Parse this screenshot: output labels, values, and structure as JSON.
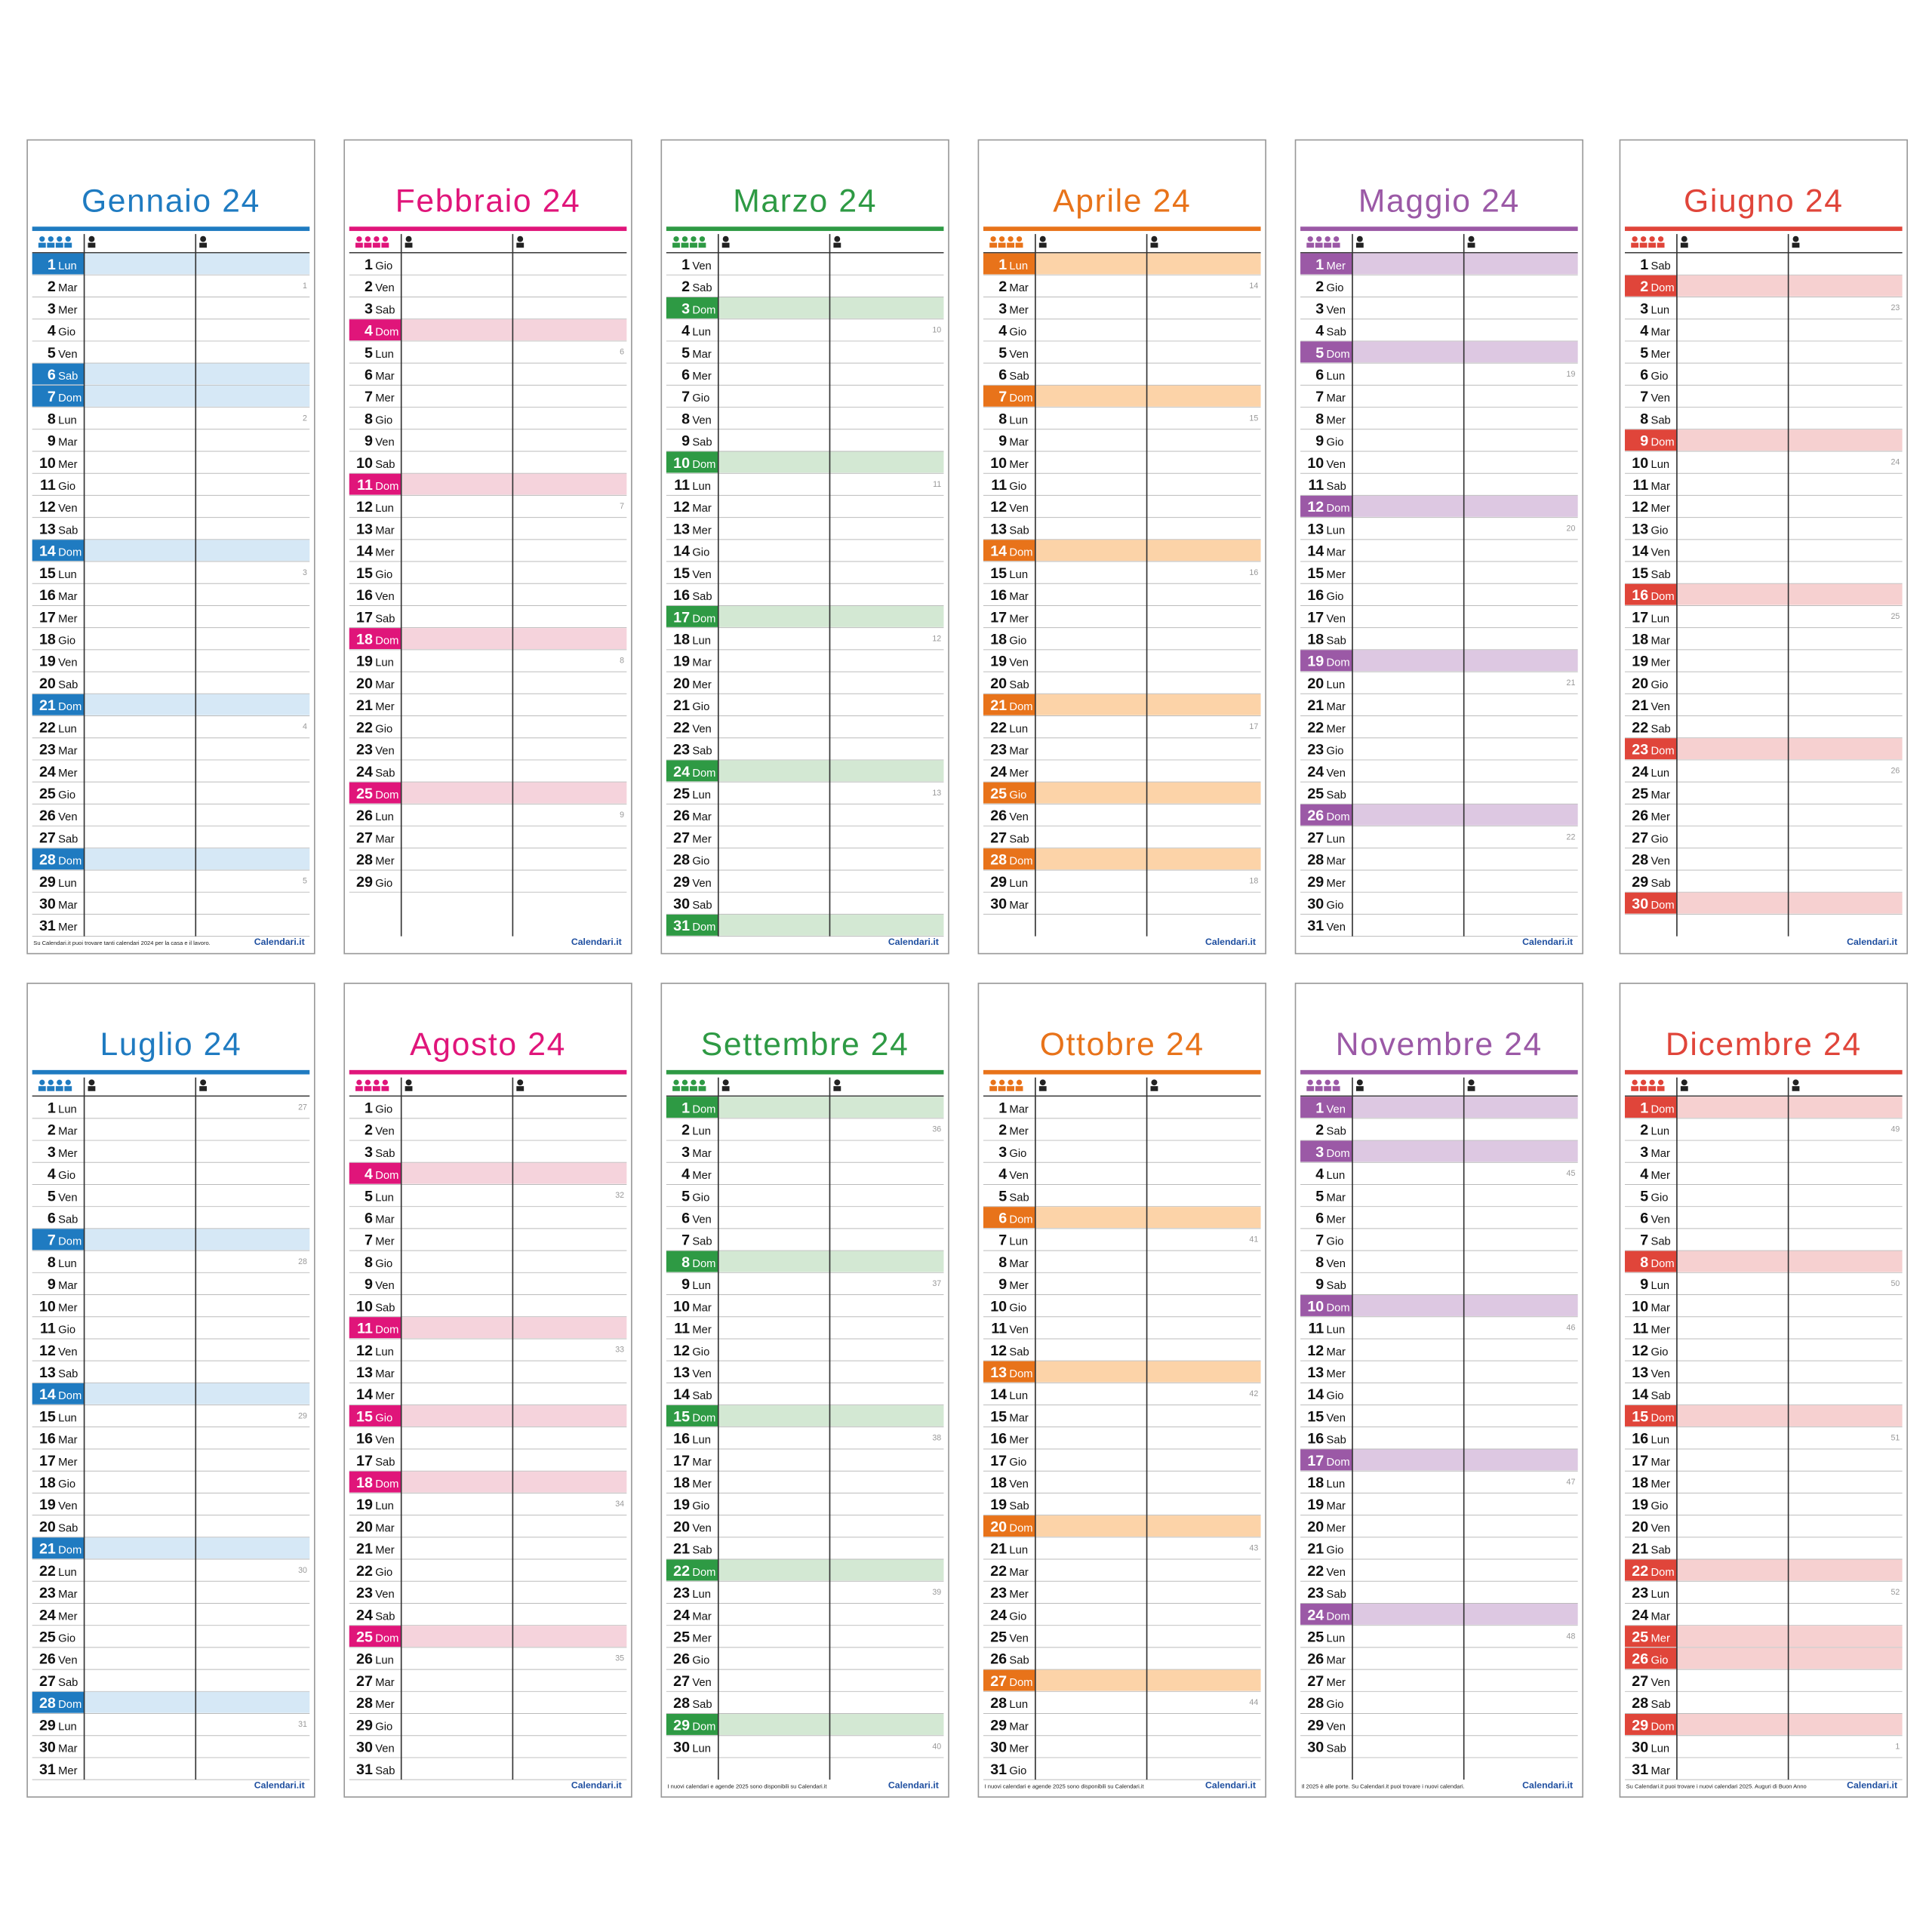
{
  "logo": "Calendari.it",
  "months": [
    {
      "title": "Gennaio 24",
      "color": "#1f7bc1",
      "light": "#d6e8f6",
      "numbers": [
        1,
        2,
        3,
        4,
        5,
        6,
        7,
        8,
        9,
        10,
        11,
        12,
        13,
        14,
        15,
        16,
        17,
        18,
        19,
        20,
        21,
        22,
        23,
        24,
        25,
        26,
        27,
        28,
        29,
        30,
        31
      ],
      "weekdays": [
        "Lun",
        "Mar",
        "Mer",
        "Gio",
        "Ven",
        "Sab",
        "Dom",
        "Lun",
        "Mar",
        "Mer",
        "Gio",
        "Ven",
        "Sab",
        "Dom",
        "Lun",
        "Mar",
        "Mer",
        "Gio",
        "Ven",
        "Sab",
        "Dom",
        "Lun",
        "Mar",
        "Mer",
        "Gio",
        "Ven",
        "Sab",
        "Dom",
        "Lun",
        "Mar",
        "Mer"
      ],
      "holidays": [
        1,
        6,
        7,
        14,
        21,
        28
      ],
      "weeks": [
        {
          "day": 2,
          "label": "1"
        },
        {
          "day": 8,
          "label": "2"
        },
        {
          "day": 15,
          "label": "3"
        },
        {
          "day": 22,
          "label": "4"
        },
        {
          "day": 29,
          "label": "5"
        }
      ],
      "footer": "Su Calendari.it puoi trovare tanti calendari 2024 per la casa e il lavoro."
    },
    {
      "title": "Febbraio 24",
      "color": "#e0157a",
      "light": "#f5d3dc",
      "numbers": [
        1,
        2,
        3,
        4,
        5,
        6,
        7,
        8,
        9,
        10,
        11,
        12,
        13,
        14,
        15,
        16,
        17,
        18,
        19,
        20,
        21,
        22,
        23,
        24,
        25,
        26,
        27,
        28,
        29
      ],
      "weekdays": [
        "Gio",
        "Ven",
        "Sab",
        "Dom",
        "Lun",
        "Mar",
        "Mer",
        "Gio",
        "Ven",
        "Sab",
        "Dom",
        "Lun",
        "Mar",
        "Mer",
        "Gio",
        "Ven",
        "Sab",
        "Dom",
        "Lun",
        "Mar",
        "Mer",
        "Gio",
        "Ven",
        "Sab",
        "Dom",
        "Lun",
        "Mar",
        "Mer",
        "Gio"
      ],
      "holidays": [
        4,
        11,
        18,
        25
      ],
      "weeks": [
        {
          "day": 5,
          "label": "6"
        },
        {
          "day": 12,
          "label": "7"
        },
        {
          "day": 19,
          "label": "8"
        },
        {
          "day": 26,
          "label": "9"
        }
      ]
    },
    {
      "title": "Marzo 24",
      "color": "#2e9a44",
      "light": "#d3e8d3",
      "numbers": [
        1,
        2,
        3,
        4,
        5,
        6,
        7,
        8,
        9,
        10,
        11,
        12,
        13,
        14,
        15,
        16,
        17,
        18,
        19,
        20,
        21,
        22,
        23,
        24,
        25,
        26,
        27,
        28,
        29,
        30,
        31
      ],
      "weekdays": [
        "Ven",
        "Sab",
        "Dom",
        "Lun",
        "Mar",
        "Mer",
        "Gio",
        "Ven",
        "Sab",
        "Dom",
        "Lun",
        "Mar",
        "Mer",
        "Gio",
        "Ven",
        "Sab",
        "Dom",
        "Lun",
        "Mar",
        "Mer",
        "Gio",
        "Ven",
        "Sab",
        "Dom",
        "Lun",
        "Mar",
        "Mer",
        "Gio",
        "Ven",
        "Sab",
        "Dom"
      ],
      "holidays": [
        3,
        10,
        17,
        24,
        31
      ],
      "weeks": [
        {
          "day": 4,
          "label": "10"
        },
        {
          "day": 11,
          "label": "11"
        },
        {
          "day": 18,
          "label": "12"
        },
        {
          "day": 25,
          "label": "13"
        }
      ]
    },
    {
      "title": "Aprile 24",
      "color": "#e8731a",
      "light": "#fcd3a8",
      "numbers": [
        1,
        2,
        3,
        4,
        5,
        6,
        7,
        8,
        9,
        10,
        11,
        12,
        13,
        14,
        15,
        16,
        17,
        18,
        19,
        20,
        21,
        22,
        23,
        24,
        25,
        26,
        27,
        28,
        29,
        30
      ],
      "weekdays": [
        "Lun",
        "Mar",
        "Mer",
        "Gio",
        "Ven",
        "Sab",
        "Dom",
        "Lun",
        "Mar",
        "Mer",
        "Gio",
        "Ven",
        "Sab",
        "Dom",
        "Lun",
        "Mar",
        "Mer",
        "Gio",
        "Ven",
        "Sab",
        "Dom",
        "Lun",
        "Mar",
        "Mer",
        "Gio",
        "Ven",
        "Sab",
        "Dom",
        "Lun",
        "Mar"
      ],
      "holidays": [
        1,
        7,
        14,
        21,
        25,
        28
      ],
      "weeks": [
        {
          "day": 2,
          "label": "14"
        },
        {
          "day": 8,
          "label": "15"
        },
        {
          "day": 15,
          "label": "16"
        },
        {
          "day": 22,
          "label": "17"
        },
        {
          "day": 29,
          "label": "18"
        }
      ]
    },
    {
      "title": "Maggio 24",
      "color": "#9b59a6",
      "light": "#ddc8e2",
      "numbers": [
        1,
        2,
        3,
        4,
        5,
        6,
        7,
        8,
        9,
        10,
        11,
        12,
        13,
        14,
        15,
        16,
        17,
        18,
        19,
        20,
        21,
        22,
        23,
        24,
        25,
        26,
        27,
        28,
        29,
        30,
        31
      ],
      "weekdays": [
        "Mer",
        "Gio",
        "Ven",
        "Sab",
        "Dom",
        "Lun",
        "Mar",
        "Mer",
        "Gio",
        "Ven",
        "Sab",
        "Dom",
        "Lun",
        "Mar",
        "Mer",
        "Gio",
        "Ven",
        "Sab",
        "Dom",
        "Lun",
        "Mar",
        "Mer",
        "Gio",
        "Ven",
        "Sab",
        "Dom",
        "Lun",
        "Mar",
        "Mer",
        "Gio",
        "Ven"
      ],
      "holidays": [
        1,
        5,
        12,
        19,
        26
      ],
      "weeks": [
        {
          "day": 6,
          "label": "19"
        },
        {
          "day": 13,
          "label": "20"
        },
        {
          "day": 20,
          "label": "21"
        },
        {
          "day": 27,
          "label": "22"
        }
      ]
    },
    {
      "title": "Giugno 24",
      "color": "#e0453a",
      "light": "#f6d0d0",
      "numbers": [
        1,
        2,
        3,
        4,
        5,
        6,
        7,
        8,
        9,
        10,
        11,
        12,
        13,
        14,
        15,
        16,
        17,
        18,
        19,
        20,
        21,
        22,
        23,
        24,
        25,
        26,
        27,
        28,
        29,
        30
      ],
      "weekdays": [
        "Sab",
        "Dom",
        "Lun",
        "Mar",
        "Mer",
        "Gio",
        "Ven",
        "Sab",
        "Dom",
        "Lun",
        "Mar",
        "Mer",
        "Gio",
        "Ven",
        "Sab",
        "Dom",
        "Lun",
        "Mar",
        "Mer",
        "Gio",
        "Ven",
        "Sab",
        "Dom",
        "Lun",
        "Mar",
        "Mer",
        "Gio",
        "Ven",
        "Sab",
        "Dom"
      ],
      "holidays": [
        2,
        9,
        16,
        23,
        30
      ],
      "weeks": [
        {
          "day": 3,
          "label": "23"
        },
        {
          "day": 10,
          "label": "24"
        },
        {
          "day": 17,
          "label": "25"
        },
        {
          "day": 24,
          "label": "26"
        }
      ]
    },
    {
      "title": "Luglio 24",
      "color": "#1f7bc1",
      "light": "#d6e8f6",
      "numbers": [
        1,
        2,
        3,
        4,
        5,
        6,
        7,
        8,
        9,
        10,
        11,
        12,
        13,
        14,
        15,
        16,
        17,
        18,
        19,
        20,
        21,
        22,
        23,
        24,
        25,
        26,
        27,
        28,
        29,
        30,
        31
      ],
      "weekdays": [
        "Lun",
        "Mar",
        "Mer",
        "Gio",
        "Ven",
        "Sab",
        "Dom",
        "Lun",
        "Mar",
        "Mer",
        "Gio",
        "Ven",
        "Sab",
        "Dom",
        "Lun",
        "Mar",
        "Mer",
        "Gio",
        "Ven",
        "Sab",
        "Dom",
        "Lun",
        "Mar",
        "Mer",
        "Gio",
        "Ven",
        "Sab",
        "Dom",
        "Lun",
        "Mar",
        "Mer"
      ],
      "holidays": [
        7,
        14,
        21,
        28
      ],
      "weeks": [
        {
          "day": 1,
          "label": "27"
        },
        {
          "day": 8,
          "label": "28"
        },
        {
          "day": 15,
          "label": "29"
        },
        {
          "day": 22,
          "label": "30"
        },
        {
          "day": 29,
          "label": "31"
        }
      ]
    },
    {
      "title": "Agosto 24",
      "color": "#e0157a",
      "light": "#f5d3dc",
      "numbers": [
        1,
        2,
        3,
        4,
        5,
        6,
        7,
        8,
        9,
        10,
        11,
        12,
        13,
        14,
        15,
        16,
        17,
        18,
        19,
        20,
        21,
        22,
        23,
        24,
        25,
        26,
        27,
        28,
        29,
        30,
        31
      ],
      "weekdays": [
        "Gio",
        "Ven",
        "Sab",
        "Dom",
        "Lun",
        "Mar",
        "Mer",
        "Gio",
        "Ven",
        "Sab",
        "Dom",
        "Lun",
        "Mar",
        "Mer",
        "Gio",
        "Ven",
        "Sab",
        "Dom",
        "Lun",
        "Mar",
        "Mer",
        "Gio",
        "Ven",
        "Sab",
        "Dom",
        "Lun",
        "Mar",
        "Mer",
        "Gio",
        "Ven",
        "Sab"
      ],
      "holidays": [
        4,
        11,
        15,
        18,
        25
      ],
      "weeks": [
        {
          "day": 5,
          "label": "32"
        },
        {
          "day": 12,
          "label": "33"
        },
        {
          "day": 19,
          "label": "34"
        },
        {
          "day": 26,
          "label": "35"
        }
      ]
    },
    {
      "title": "Settembre 24",
      "color": "#2e9a44",
      "light": "#d3e8d3",
      "numbers": [
        1,
        2,
        3,
        4,
        5,
        6,
        7,
        8,
        9,
        10,
        11,
        12,
        13,
        14,
        15,
        16,
        17,
        18,
        19,
        20,
        21,
        22,
        23,
        24,
        25,
        26,
        27,
        28,
        29,
        30
      ],
      "weekdays": [
        "Dom",
        "Lun",
        "Mar",
        "Mer",
        "Gio",
        "Ven",
        "Sab",
        "Dom",
        "Lun",
        "Mar",
        "Mer",
        "Gio",
        "Ven",
        "Sab",
        "Dom",
        "Lun",
        "Mar",
        "Mer",
        "Gio",
        "Ven",
        "Sab",
        "Dom",
        "Lun",
        "Mar",
        "Mer",
        "Gio",
        "Ven",
        "Sab",
        "Dom",
        "Lun"
      ],
      "holidays": [
        1,
        8,
        15,
        22,
        29
      ],
      "weeks": [
        {
          "day": 2,
          "label": "36"
        },
        {
          "day": 9,
          "label": "37"
        },
        {
          "day": 16,
          "label": "38"
        },
        {
          "day": 23,
          "label": "39"
        },
        {
          "day": 30,
          "label": "40"
        }
      ],
      "footer": "I nuovi calendari e agende 2025 sono disponibili su Calendari.it"
    },
    {
      "title": "Ottobre 24",
      "color": "#e8731a",
      "light": "#fcd3a8",
      "numbers": [
        1,
        2,
        3,
        4,
        5,
        6,
        7,
        8,
        9,
        10,
        11,
        12,
        13,
        14,
        15,
        16,
        17,
        18,
        19,
        20,
        21,
        22,
        23,
        24,
        25,
        26,
        27,
        28,
        29,
        30,
        31
      ],
      "weekdays": [
        "Mar",
        "Mer",
        "Gio",
        "Ven",
        "Sab",
        "Dom",
        "Lun",
        "Mar",
        "Mer",
        "Gio",
        "Ven",
        "Sab",
        "Dom",
        "Lun",
        "Mar",
        "Mer",
        "Gio",
        "Ven",
        "Sab",
        "Dom",
        "Lun",
        "Mar",
        "Mer",
        "Gio",
        "Ven",
        "Sab",
        "Dom",
        "Lun",
        "Mar",
        "Mer",
        "Gio"
      ],
      "holidays": [
        6,
        13,
        20,
        27
      ],
      "weeks": [
        {
          "day": 7,
          "label": "41"
        },
        {
          "day": 14,
          "label": "42"
        },
        {
          "day": 21,
          "label": "43"
        },
        {
          "day": 28,
          "label": "44"
        }
      ],
      "footer": "I nuovi calendari e agende 2025 sono disponibili su Calendari.it"
    },
    {
      "title": "Novembre 24",
      "color": "#9b59a6",
      "light": "#ddc8e2",
      "numbers": [
        1,
        2,
        3,
        4,
        5,
        6,
        7,
        8,
        9,
        10,
        11,
        12,
        13,
        14,
        15,
        16,
        17,
        18,
        19,
        20,
        21,
        22,
        23,
        24,
        25,
        26,
        27,
        28,
        29,
        30
      ],
      "weekdays": [
        "Ven",
        "Sab",
        "Dom",
        "Lun",
        "Mar",
        "Mer",
        "Gio",
        "Ven",
        "Sab",
        "Dom",
        "Lun",
        "Mar",
        "Mer",
        "Gio",
        "Ven",
        "Sab",
        "Dom",
        "Lun",
        "Mar",
        "Mer",
        "Gio",
        "Ven",
        "Sab",
        "Dom",
        "Lun",
        "Mar",
        "Mer",
        "Gio",
        "Ven",
        "Sab"
      ],
      "holidays": [
        1,
        3,
        10,
        17,
        24
      ],
      "weeks": [
        {
          "day": 4,
          "label": "45"
        },
        {
          "day": 11,
          "label": "46"
        },
        {
          "day": 18,
          "label": "47"
        },
        {
          "day": 25,
          "label": "48"
        }
      ],
      "footer": "Il 2025 è alle porte. Su Calendari.it puoi trovare i nuovi calendari."
    },
    {
      "title": "Dicembre 24",
      "color": "#e0453a",
      "light": "#f6d0d0",
      "numbers": [
        1,
        2,
        3,
        4,
        5,
        6,
        7,
        8,
        9,
        10,
        11,
        12,
        13,
        14,
        15,
        16,
        17,
        18,
        19,
        20,
        21,
        22,
        23,
        24,
        25,
        26,
        27,
        28,
        29,
        30,
        31
      ],
      "weekdays": [
        "Dom",
        "Lun",
        "Mar",
        "Mer",
        "Gio",
        "Ven",
        "Sab",
        "Dom",
        "Lun",
        "Mar",
        "Mer",
        "Gio",
        "Ven",
        "Sab",
        "Dom",
        "Lun",
        "Mar",
        "Mer",
        "Gio",
        "Ven",
        "Sab",
        "Dom",
        "Lun",
        "Mar",
        "Mer",
        "Gio",
        "Ven",
        "Sab",
        "Dom",
        "Lun",
        "Mar"
      ],
      "holidays": [
        1,
        8,
        15,
        22,
        25,
        26,
        29
      ],
      "weeks": [
        {
          "day": 2,
          "label": "49"
        },
        {
          "day": 9,
          "label": "50"
        },
        {
          "day": 16,
          "label": "51"
        },
        {
          "day": 23,
          "label": "52"
        },
        {
          "day": 30,
          "label": "1"
        }
      ],
      "footer": "Su Calendari.it puoi trovare i nuovi calendari 2025. Auguri di Buon Anno"
    }
  ]
}
